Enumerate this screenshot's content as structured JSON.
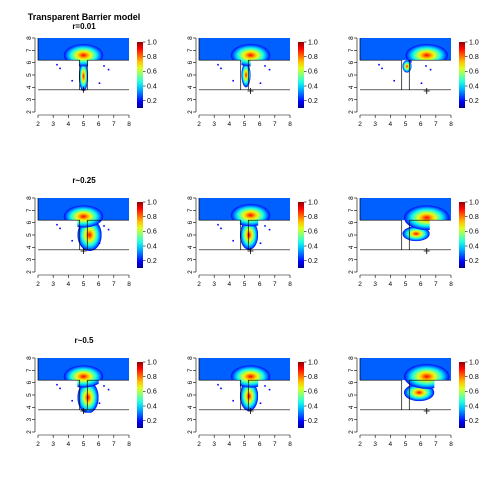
{
  "figure": {
    "title": "Transparent Barrier model"
  },
  "rows": [
    {
      "label": "r=0.01"
    },
    {
      "label": "r~0.25"
    },
    {
      "label": "r~0.5"
    }
  ],
  "colors": {
    "colormap": [
      "#00008f",
      "#0000ff",
      "#0060ff",
      "#00c0ff",
      "#20ffe0",
      "#80ff80",
      "#e0ff20",
      "#ffc000",
      "#ff6000",
      "#ff0000",
      "#8f0000"
    ],
    "boundary": "#000000",
    "background": "#ffffff"
  },
  "chart_data": {
    "type": "heatmap",
    "layout": "3x3 grid of field maps",
    "xlim": [
      2,
      8
    ],
    "ylim": [
      2,
      8
    ],
    "x_ticks": [
      "2",
      "3",
      "4",
      "5",
      "6",
      "7",
      "8"
    ],
    "y_ticks": [
      "2",
      "3",
      "4",
      "5",
      "6",
      "7",
      "8"
    ],
    "colorbar_range": [
      0.1,
      1.0
    ],
    "colorbar_ticks": [
      "0.2",
      "0.4",
      "0.6",
      "0.8",
      "1.0"
    ],
    "domain": {
      "upper_region_y": [
        6.2,
        8
      ],
      "barrier_y": [
        3.8,
        6.2
      ],
      "gap_x": [
        4.75,
        5.25
      ],
      "open_x": [
        2,
        8
      ]
    },
    "panels": [
      {
        "row": 0,
        "col": 0,
        "source": [
          5.0,
          6.6
        ],
        "point": [
          5.0,
          3.8
        ],
        "blob": [
          5.0,
          6.6,
          1.3,
          0.9
        ],
        "tail": [
          5.0,
          4.9,
          0.3,
          1.2
        ],
        "scattered": true
      },
      {
        "row": 0,
        "col": 1,
        "source": [
          5.4,
          6.6
        ],
        "point": [
          5.4,
          3.7
        ],
        "blob": [
          5.4,
          6.6,
          1.3,
          0.9
        ],
        "tail": [
          5.1,
          5.0,
          0.3,
          1.0
        ],
        "scattered": true
      },
      {
        "row": 0,
        "col": 2,
        "source": [
          6.4,
          6.6
        ],
        "point": [
          6.4,
          3.7
        ],
        "blob": [
          6.4,
          6.6,
          1.4,
          0.9
        ],
        "tail": [
          5.1,
          5.7,
          0.3,
          0.5
        ],
        "scattered": true
      },
      {
        "row": 1,
        "col": 0,
        "source": [
          5.0,
          6.5
        ],
        "point": [
          5.0,
          3.7
        ],
        "blob": [
          5.0,
          6.5,
          1.3,
          0.9
        ],
        "tail": [
          5.4,
          5.0,
          0.8,
          1.3
        ],
        "scattered": true
      },
      {
        "row": 1,
        "col": 1,
        "source": [
          5.4,
          6.6
        ],
        "point": [
          5.4,
          3.7
        ],
        "blob": [
          5.4,
          6.6,
          1.3,
          0.9
        ],
        "tail": [
          5.3,
          5.0,
          0.6,
          1.2
        ],
        "scattered": true
      },
      {
        "row": 1,
        "col": 2,
        "source": [
          6.4,
          6.4
        ],
        "point": [
          6.4,
          3.7
        ],
        "blob": [
          6.4,
          6.4,
          1.5,
          1.0
        ],
        "tail": [
          5.7,
          5.1,
          0.9,
          0.6
        ],
        "scattered": false
      },
      {
        "row": 2,
        "col": 0,
        "source": [
          5.0,
          6.5
        ],
        "point": [
          5.0,
          3.7
        ],
        "blob": [
          5.0,
          6.5,
          1.3,
          0.9
        ],
        "tail": [
          5.3,
          4.8,
          0.7,
          1.3
        ],
        "scattered": true
      },
      {
        "row": 2,
        "col": 1,
        "source": [
          5.4,
          6.5
        ],
        "point": [
          5.4,
          3.7
        ],
        "blob": [
          5.4,
          6.5,
          1.3,
          0.9
        ],
        "tail": [
          5.3,
          4.9,
          0.6,
          1.2
        ],
        "scattered": true
      },
      {
        "row": 2,
        "col": 2,
        "source": [
          6.4,
          6.5
        ],
        "point": [
          6.4,
          3.7
        ],
        "blob": [
          6.4,
          6.5,
          1.5,
          1.0
        ],
        "tail": [
          5.9,
          5.2,
          1.0,
          0.7
        ],
        "scattered": false
      }
    ]
  }
}
